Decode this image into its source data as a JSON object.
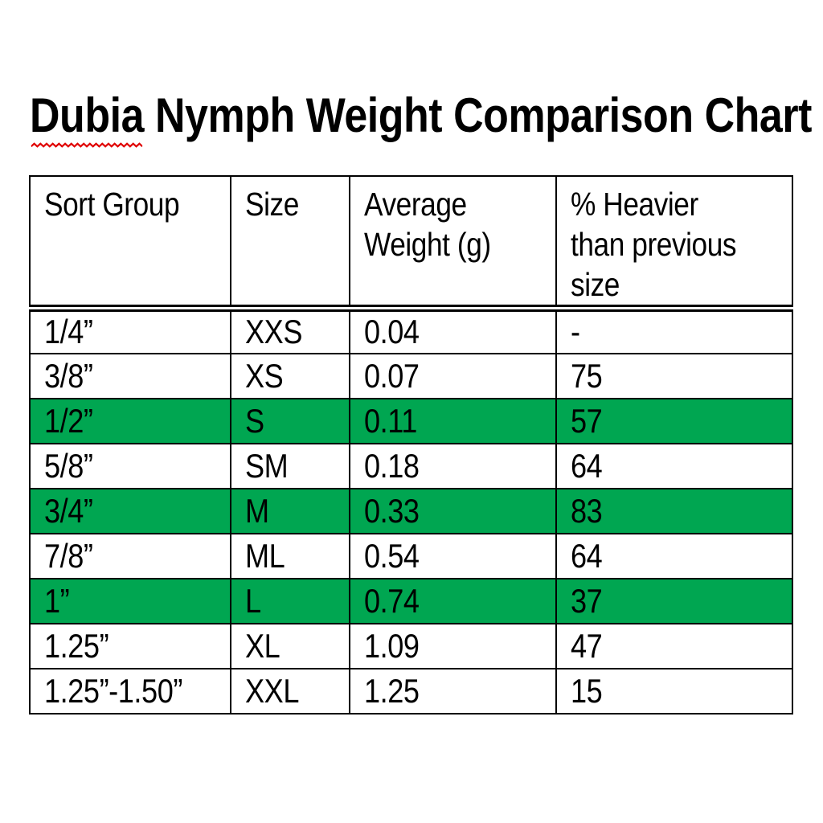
{
  "colors": {
    "page_background": "#ffffff",
    "text_black": "#000000",
    "border_black": "#000000",
    "highlight_green": "#00a651",
    "squiggle_red": "#e00000"
  },
  "title": {
    "misspelled_word": "Dubia",
    "rest": " Nymph Weight Comparison Chart",
    "full": "Dubia Nymph Weight Comparison Chart"
  },
  "table": {
    "columns": [
      {
        "id": "sort_group",
        "lines": [
          "Sort Group"
        ]
      },
      {
        "id": "size",
        "lines": [
          "Size"
        ]
      },
      {
        "id": "avg_weight",
        "lines": [
          "Average",
          "Weight (g)"
        ]
      },
      {
        "id": "pct_heavier",
        "lines": [
          "% Heavier",
          "than previous",
          "size"
        ]
      }
    ],
    "rows": [
      {
        "sort_group": "1/4”",
        "size": "XXS",
        "avg_weight": "0.04",
        "pct_heavier": "-",
        "highlighted": false
      },
      {
        "sort_group": "3/8”",
        "size": "XS",
        "avg_weight": "0.07",
        "pct_heavier": "75",
        "highlighted": false
      },
      {
        "sort_group": "1/2”",
        "size": "S",
        "avg_weight": "0.11",
        "pct_heavier": "57",
        "highlighted": true
      },
      {
        "sort_group": "5/8”",
        "size": "SM",
        "avg_weight": "0.18",
        "pct_heavier": "64",
        "highlighted": false
      },
      {
        "sort_group": "3/4”",
        "size": "M",
        "avg_weight": "0.33",
        "pct_heavier": "83",
        "highlighted": true
      },
      {
        "sort_group": "7/8”",
        "size": "ML",
        "avg_weight": "0.54",
        "pct_heavier": "64",
        "highlighted": false
      },
      {
        "sort_group": "1”",
        "size": "L",
        "avg_weight": "0.74",
        "pct_heavier": "37",
        "highlighted": true
      },
      {
        "sort_group": "1.25”",
        "size": "XL",
        "avg_weight": "1.09",
        "pct_heavier": "47",
        "highlighted": false
      },
      {
        "sort_group": "1.25”-1.50”",
        "size": "XXL",
        "avg_weight": "1.25",
        "pct_heavier": "15",
        "highlighted": false
      }
    ]
  }
}
